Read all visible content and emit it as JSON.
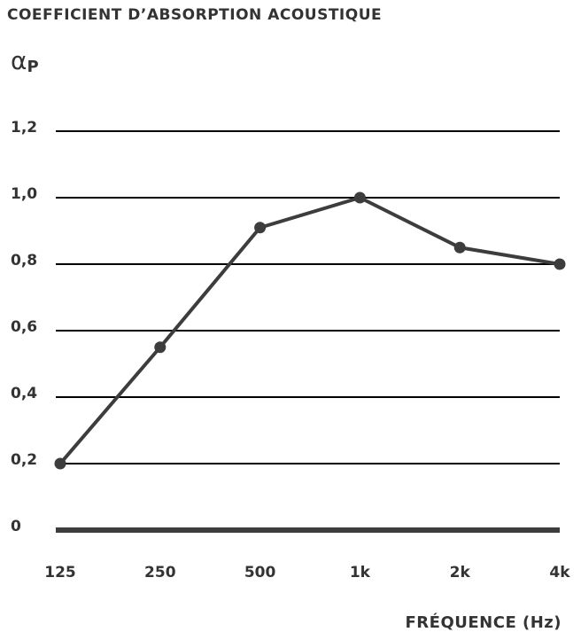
{
  "chart_data": {
    "type": "line",
    "title": "COEFFICIENT D’ABSORPTION ACOUSTIQUE",
    "y_label": "α",
    "y_label_subscript": "P",
    "x_label": "FRÉQUENCE (Hz)",
    "categories": [
      "125",
      "250",
      "500",
      "1k",
      "2k",
      "4k"
    ],
    "series": [
      {
        "name": "αP",
        "color": "#3d3d3d",
        "values": [
          0.2,
          0.55,
          0.91,
          1.0,
          0.85,
          0.8
        ]
      }
    ],
    "ylim": [
      0,
      1.2
    ],
    "yticks": [
      0,
      {
        "value": 0.2,
        "label": "0,2"
      },
      {
        "value": 0.4,
        "label": "0,4"
      },
      {
        "value": 0.6,
        "label": "0,6"
      },
      {
        "value": 0.8,
        "label": "0,8"
      },
      {
        "value": 1.0,
        "label": "1,0"
      },
      {
        "value": 1.2,
        "label": "1,2"
      }
    ],
    "grid": true
  }
}
